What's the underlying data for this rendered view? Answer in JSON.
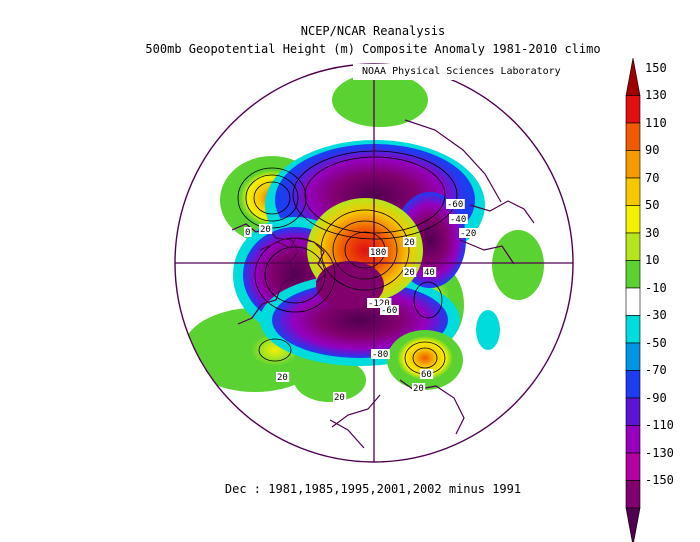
{
  "header": {
    "line1": "NCEP/NCAR Reanalysis",
    "line2": "500mb Geopotential Height (m) Composite Anomaly 1981-2010 climo"
  },
  "credit": "NOAA Physical Sciences Laboratory",
  "footer": "Dec : 1981,1985,1995,2001,2002 minus 1991",
  "map": {
    "projection": "north-polar-stereographic",
    "contour_labels": [
      "-60",
      "-40",
      "-20",
      "20",
      "180",
      "20",
      "40",
      "-120",
      "-60",
      "-80",
      "20",
      "60",
      "20",
      "20",
      "0",
      "20"
    ]
  },
  "colorbar": {
    "levels": [
      "150",
      "130",
      "110",
      "90",
      "70",
      "50",
      "30",
      "10",
      "-10",
      "-30",
      "-50",
      "-70",
      "-90",
      "-110",
      "-130",
      "-150"
    ],
    "colors": [
      "#a00000",
      "#e01010",
      "#f05a00",
      "#f59a00",
      "#f5c800",
      "#f5f000",
      "#b4e61e",
      "#5ad232",
      "#ffffff",
      "#00dcdc",
      "#0096e6",
      "#1e3cf0",
      "#5a14d2",
      "#9600be",
      "#b400a0",
      "#82006e",
      "#500050"
    ]
  }
}
